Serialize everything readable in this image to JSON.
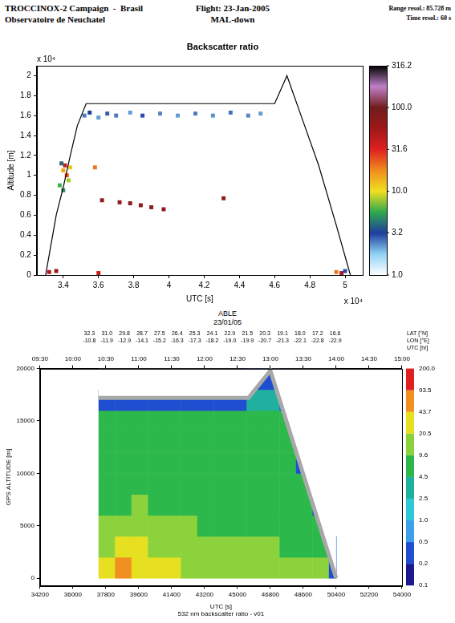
{
  "chart_data": [
    {
      "type": "scatter",
      "header": {
        "left": [
          "TROCCINOX-2 Campaign  -  Brasil",
          "Observatoire de Neuchatel"
        ],
        "center": [
          "Flight: 23-Jan-2005",
          "MAL-down"
        ],
        "right": [
          "Range resol.: 85.728 m",
          "Time resol.: 60 s"
        ]
      },
      "title": "Backscatter ratio",
      "xlabel": "UTC [s]",
      "ylabel": "Altitude [m]",
      "x_multiplier": "x 10⁴",
      "y_multiplier": "x 10⁴",
      "xlim": [
        3.25,
        5.1
      ],
      "xticks": [
        3.4,
        3.6,
        3.8,
        4,
        4.2,
        4.4,
        4.6,
        4.8,
        5
      ],
      "ylim": [
        0,
        2.1
      ],
      "yticks": [
        0,
        0.2,
        0.4,
        0.6,
        0.8,
        1,
        1.2,
        1.4,
        1.6,
        1.8,
        2
      ],
      "grid": false,
      "colorbar": {
        "log": true,
        "range": [
          1,
          316.2
        ],
        "ticks": [
          {
            "value": 1,
            "label": "1.0"
          },
          3.2,
          {
            "value": 10,
            "label": "10.0"
          },
          31.6,
          {
            "value": 100,
            "label": "100.0"
          },
          316.2
        ],
        "colors": [
          "#ffffff",
          "#8fd3f4",
          "#1f3d9e",
          "#2fa84f",
          "#f0e020",
          "#f08c1e",
          "#e02020",
          "#a01818",
          "#701c1c",
          "#c080c8",
          "#000000"
        ]
      },
      "series": [
        {
          "type": "line",
          "color": "#000000",
          "x": [
            3.3,
            3.33,
            3.36,
            3.4,
            3.44,
            3.48,
            3.53,
            4.6,
            4.67,
            4.75,
            4.85,
            4.95,
            5.03
          ],
          "values": [
            0,
            0.3,
            0.6,
            0.88,
            1.2,
            1.5,
            1.72,
            1.72,
            2.0,
            1.6,
            1.1,
            0.5,
            0
          ]
        },
        {
          "type": "scatter",
          "marker": "square",
          "x": [
            3.52,
            3.55,
            3.6,
            3.65,
            3.7,
            3.78,
            3.85,
            3.95,
            4.05,
            4.15,
            4.25,
            4.35,
            4.45,
            4.52,
            3.38,
            3.4,
            3.41,
            3.42,
            3.43,
            3.4,
            3.44,
            3.39,
            3.58,
            3.62,
            3.72,
            3.78,
            3.84,
            3.9,
            3.97,
            4.31,
            3.32,
            3.36,
            3.6,
            4.95,
            4.98,
            5.0
          ],
          "y": [
            1.6,
            1.63,
            1.58,
            1.62,
            1.6,
            1.63,
            1.6,
            1.62,
            1.6,
            1.62,
            1.6,
            1.63,
            1.6,
            1.62,
            0.9,
            1.05,
            1.1,
            1.0,
            0.95,
            0.85,
            1.08,
            1.12,
            1.08,
            0.75,
            0.73,
            0.72,
            0.7,
            0.68,
            0.66,
            0.77,
            0.03,
            0.04,
            0.02,
            0.03,
            0.02,
            0.04
          ],
          "backscatter_ratio": [
            2.5,
            3.2,
            2.2,
            2.8,
            2.5,
            2.2,
            3.0,
            2.4,
            2.2,
            2.5,
            2.3,
            2.6,
            2.4,
            2.2,
            6,
            15,
            40,
            25,
            8,
            5,
            12,
            4,
            20,
            70,
            70,
            70,
            70,
            70,
            70,
            70,
            50,
            60,
            40,
            20,
            50,
            3
          ]
        }
      ]
    },
    {
      "type": "heatmap",
      "title": "ABLE",
      "subtitle": "23/01/05",
      "xlabel": "UTC [s]",
      "ylabel": "GPS ALTITUDE [m]",
      "caption": "532 nm backscatter ratio - v01",
      "xlim": [
        34200,
        54000
      ],
      "xticks": [
        34200,
        36000,
        37800,
        39600,
        41400,
        43200,
        45000,
        46800,
        48600,
        50400,
        52200,
        54000
      ],
      "ylim": [
        -700,
        20000
      ],
      "yticks": [
        0,
        5000,
        10000,
        15000,
        20000
      ],
      "grid": false,
      "top_axis": {
        "label": "UTC [hr]",
        "ticks": [
          {
            "value": 34200,
            "label": "09:30"
          },
          {
            "value": 36000,
            "label": "10:00"
          },
          {
            "value": 37800,
            "label": "10:30"
          },
          {
            "value": 39600,
            "label": "11:00"
          },
          {
            "value": 41400,
            "label": "11:30"
          },
          {
            "value": 43200,
            "label": "12:00"
          },
          {
            "value": 45000,
            "label": "12:30"
          },
          {
            "value": 46800,
            "label": "13:00"
          },
          {
            "value": 48600,
            "label": "13:30"
          },
          {
            "value": 50400,
            "label": "14:00"
          },
          {
            "value": 52200,
            "label": "14:30"
          },
          {
            "value": 54000,
            "label": "15:00"
          }
        ],
        "x": [
          36900,
          37860,
          38820,
          39780,
          40740,
          41700,
          42660,
          43620,
          44580,
          45540,
          46500,
          47460,
          48420,
          49380,
          50340
        ],
        "rows": [
          {
            "label": "LAT [°N]",
            "values": [
              "32.3",
              "31.0",
              "29.8",
              "28.7",
              "27.5",
              "26.4",
              "25.3",
              "24.1",
              "22.9",
              "21.5",
              "20.3",
              "19.1",
              "18.0",
              "17.2",
              "16.6"
            ]
          },
          {
            "label": "LON [°E]",
            "values": [
              "-10.8",
              "-11.9",
              "-12.9",
              "-14.1",
              "-15.2",
              "-16.3",
              "-17.3",
              "-18.2",
              "-19.0",
              "-19.9",
              "-20.7",
              "-21.3",
              "-22.1",
              "-22.8",
              "-22.9"
            ]
          }
        ]
      },
      "colorbar": {
        "ticks": [
          0.1,
          0.2,
          0.5,
          {
            "value": 1,
            "label": "1.0"
          },
          2.5,
          4.5,
          9.6,
          20.5,
          43.7,
          93.5,
          {
            "value": 200,
            "label": "200.0"
          }
        ],
        "colors": [
          "#1a1a8c",
          "#1f4fd0",
          "#3ea0e8",
          "#30c8d8",
          "#20b0a0",
          "#2cb84a",
          "#8cd23c",
          "#e6e020",
          "#f09020",
          "#e02020"
        ]
      },
      "cells": {
        "x_edges": [
          37400,
          38300,
          39200,
          40100,
          41000,
          41900,
          42800,
          43700,
          44600,
          45500,
          46400,
          47300,
          48200,
          49100,
          50000,
          50400
        ],
        "y_edges": [
          0,
          2000,
          4000,
          6000,
          8000,
          10000,
          12000,
          14000,
          16000,
          18000,
          20000
        ],
        "values": [
          [
            30.0,
            14.0,
            12.0,
            8.0,
            7.0,
            6.5,
            6.0,
            5.5,
            0.4,
            null
          ],
          [
            60.0,
            25.0,
            15.0,
            9.0,
            7.0,
            6.0,
            6.0,
            5.5,
            0.4,
            null
          ],
          [
            35.0,
            22.0,
            14.0,
            10.0,
            8.0,
            6.5,
            6.0,
            5.0,
            0.4,
            null
          ],
          [
            28.0,
            18.0,
            13.0,
            9.5,
            7.5,
            6.5,
            5.5,
            5.0,
            0.4,
            null
          ],
          [
            22.0,
            15.0,
            11.0,
            8.5,
            7.0,
            6.0,
            5.5,
            5.0,
            0.4,
            null
          ],
          [
            18.0,
            13.0,
            10.0,
            8.0,
            6.5,
            6.0,
            5.5,
            5.0,
            0.4,
            null
          ],
          [
            15.0,
            12.0,
            9.0,
            7.5,
            6.5,
            6.0,
            5.5,
            5.0,
            0.4,
            null
          ],
          [
            14.0,
            11.0,
            9.0,
            7.0,
            6.5,
            6.0,
            5.5,
            5.0,
            0.4,
            null
          ],
          [
            13.0,
            10.5,
            8.5,
            7.0,
            6.5,
            6.0,
            5.5,
            5.0,
            0.4,
            null
          ],
          [
            12.0,
            10.0,
            8.0,
            7.0,
            6.0,
            6.0,
            5.5,
            5.0,
            4.0,
            0.4
          ],
          [
            12.0,
            10.0,
            8.0,
            7.0,
            6.0,
            5.5,
            5.5,
            5.0,
            4.0,
            0.4
          ],
          [
            11.0,
            9.5,
            8.0,
            7.0,
            6.0,
            5.5,
            5.0,
            4.5,
            0.4,
            null
          ],
          [
            10.5,
            9.0,
            7.5,
            6.5,
            6.0,
            0.4,
            null,
            null,
            null,
            null
          ],
          [
            10.0,
            8.5,
            6.0,
            0.4,
            null,
            null,
            null,
            null,
            null,
            null
          ],
          [
            0.4,
            0.4,
            null,
            null,
            null,
            null,
            null,
            null,
            null,
            null
          ]
        ]
      },
      "series": [
        {
          "type": "line",
          "color": "#a8a8a8",
          "x": [
            37400,
            45600,
            46800,
            50400
          ],
          "values": [
            17200,
            17200,
            19800,
            0
          ]
        }
      ]
    }
  ]
}
